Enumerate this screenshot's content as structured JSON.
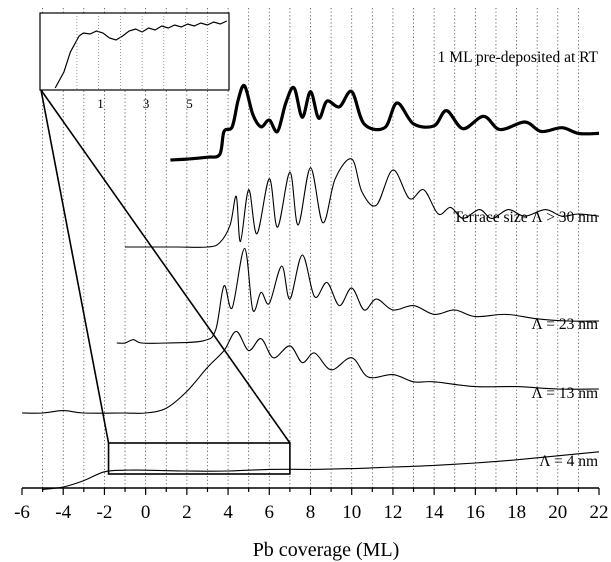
{
  "chart_data": {
    "type": "line",
    "xlabel": "Pb coverage (ML)",
    "xlim": [
      -6,
      22
    ],
    "xticks": [
      -6,
      -4,
      -2,
      0,
      2,
      4,
      6,
      8,
      10,
      12,
      14,
      16,
      18,
      20,
      22
    ],
    "grid": {
      "vertical_dotted": true,
      "every": 1
    },
    "series": [
      {
        "label": "1 ML pre-deposited at RT",
        "bold": true,
        "points": [
          [
            1.2,
            0.0
          ],
          [
            2.0,
            0.01
          ],
          [
            3.0,
            0.03
          ],
          [
            3.6,
            0.06
          ],
          [
            3.8,
            0.3
          ],
          [
            4.2,
            0.35
          ],
          [
            4.5,
            0.64
          ],
          [
            4.8,
            0.78
          ],
          [
            5.2,
            0.48
          ],
          [
            5.6,
            0.35
          ],
          [
            6.0,
            0.42
          ],
          [
            6.4,
            0.3
          ],
          [
            6.8,
            0.6
          ],
          [
            7.2,
            0.76
          ],
          [
            7.6,
            0.45
          ],
          [
            8.0,
            0.72
          ],
          [
            8.4,
            0.44
          ],
          [
            8.8,
            0.62
          ],
          [
            9.4,
            0.56
          ],
          [
            10.0,
            0.72
          ],
          [
            10.6,
            0.38
          ],
          [
            11.6,
            0.34
          ],
          [
            12.2,
            0.6
          ],
          [
            13.0,
            0.38
          ],
          [
            14.0,
            0.36
          ],
          [
            14.6,
            0.52
          ],
          [
            15.4,
            0.33
          ],
          [
            16.4,
            0.46
          ],
          [
            17.2,
            0.32
          ],
          [
            18.4,
            0.4
          ],
          [
            19.2,
            0.3
          ],
          [
            20.2,
            0.34
          ],
          [
            21.0,
            0.28
          ],
          [
            22.0,
            0.28
          ]
        ]
      },
      {
        "label": "Terrace size Λ > 30 nm",
        "bold": false,
        "points": [
          [
            -1.0,
            0.0
          ],
          [
            0.0,
            0.0
          ],
          [
            1.5,
            0.0
          ],
          [
            3.0,
            0.0
          ],
          [
            3.6,
            0.04
          ],
          [
            4.1,
            0.2
          ],
          [
            4.4,
            0.46
          ],
          [
            4.6,
            0.05
          ],
          [
            5.0,
            0.52
          ],
          [
            5.4,
            0.12
          ],
          [
            6.0,
            0.62
          ],
          [
            6.4,
            0.18
          ],
          [
            7.0,
            0.68
          ],
          [
            7.4,
            0.2
          ],
          [
            8.0,
            0.72
          ],
          [
            8.6,
            0.22
          ],
          [
            9.2,
            0.62
          ],
          [
            10.0,
            0.8
          ],
          [
            10.5,
            0.5
          ],
          [
            11.2,
            0.38
          ],
          [
            12.0,
            0.7
          ],
          [
            12.8,
            0.44
          ],
          [
            13.5,
            0.52
          ],
          [
            14.2,
            0.3
          ],
          [
            14.8,
            0.36
          ],
          [
            15.4,
            0.26
          ],
          [
            16.2,
            0.34
          ],
          [
            16.8,
            0.26
          ],
          [
            17.6,
            0.34
          ],
          [
            18.4,
            0.28
          ],
          [
            19.4,
            0.34
          ],
          [
            20.2,
            0.28
          ],
          [
            21.0,
            0.3
          ],
          [
            22.0,
            0.28
          ]
        ]
      },
      {
        "label": "Λ = 23 nm",
        "bold": false,
        "points": [
          [
            -1.4,
            0.0
          ],
          [
            -1.0,
            0.0
          ],
          [
            -0.6,
            0.03
          ],
          [
            -0.2,
            0.0
          ],
          [
            1.0,
            0.0
          ],
          [
            2.8,
            0.02
          ],
          [
            3.4,
            0.12
          ],
          [
            3.8,
            0.52
          ],
          [
            4.2,
            0.32
          ],
          [
            4.8,
            0.86
          ],
          [
            5.2,
            0.3
          ],
          [
            5.6,
            0.46
          ],
          [
            6.0,
            0.36
          ],
          [
            6.6,
            0.7
          ],
          [
            7.0,
            0.4
          ],
          [
            7.6,
            0.8
          ],
          [
            8.2,
            0.42
          ],
          [
            8.8,
            0.55
          ],
          [
            9.4,
            0.34
          ],
          [
            10.0,
            0.5
          ],
          [
            10.6,
            0.3
          ],
          [
            11.2,
            0.4
          ],
          [
            12.0,
            0.3
          ],
          [
            13.0,
            0.34
          ],
          [
            14.0,
            0.26
          ],
          [
            15.0,
            0.3
          ],
          [
            16.0,
            0.24
          ],
          [
            17.5,
            0.26
          ],
          [
            19.0,
            0.22
          ],
          [
            20.5,
            0.2
          ],
          [
            22.0,
            0.2
          ]
        ]
      },
      {
        "label": "Λ = 13 nm",
        "bold": false,
        "points": [
          [
            -6.0,
            0.0
          ],
          [
            -5.0,
            0.0
          ],
          [
            -4.0,
            0.02
          ],
          [
            -3.0,
            0.0
          ],
          [
            -1.0,
            0.0
          ],
          [
            0.0,
            0.0
          ],
          [
            1.0,
            0.04
          ],
          [
            2.0,
            0.18
          ],
          [
            3.0,
            0.38
          ],
          [
            3.8,
            0.52
          ],
          [
            4.4,
            0.68
          ],
          [
            5.0,
            0.52
          ],
          [
            5.6,
            0.62
          ],
          [
            6.2,
            0.46
          ],
          [
            7.0,
            0.56
          ],
          [
            7.6,
            0.42
          ],
          [
            8.2,
            0.5
          ],
          [
            9.0,
            0.36
          ],
          [
            10.0,
            0.46
          ],
          [
            10.8,
            0.3
          ],
          [
            12.0,
            0.32
          ],
          [
            13.0,
            0.26
          ],
          [
            14.0,
            0.26
          ],
          [
            16.0,
            0.22
          ],
          [
            18.0,
            0.22
          ],
          [
            20.0,
            0.2
          ],
          [
            22.0,
            0.2
          ]
        ]
      },
      {
        "label": "Λ = 4 nm",
        "bold": false,
        "points": [
          [
            -5.0,
            -0.06
          ],
          [
            -4.0,
            0.0
          ],
          [
            -3.0,
            0.16
          ],
          [
            -2.0,
            0.38
          ],
          [
            -1.0,
            0.42
          ],
          [
            0.0,
            0.42
          ],
          [
            2.0,
            0.4
          ],
          [
            4.0,
            0.4
          ],
          [
            6.0,
            0.44
          ],
          [
            8.0,
            0.44
          ],
          [
            10.0,
            0.46
          ],
          [
            12.0,
            0.5
          ],
          [
            14.0,
            0.54
          ],
          [
            16.0,
            0.6
          ],
          [
            18.0,
            0.68
          ],
          [
            20.0,
            0.78
          ],
          [
            22.0,
            0.88
          ]
        ]
      }
    ],
    "inset": {
      "xticks": [
        "1",
        "3",
        "5"
      ]
    }
  }
}
